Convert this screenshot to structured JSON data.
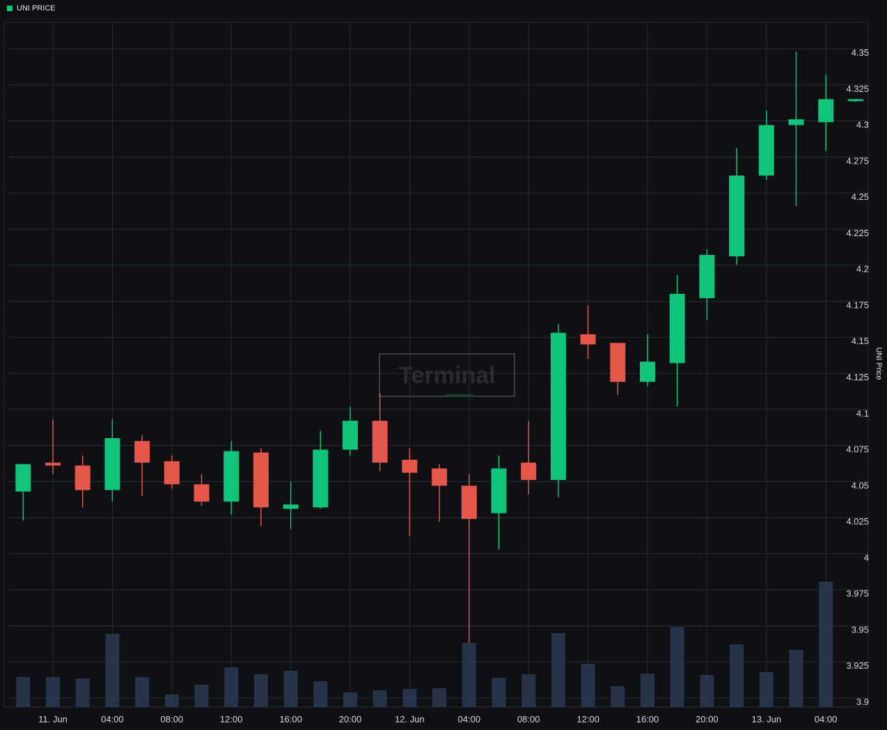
{
  "legend": {
    "label": "UNI PRICE",
    "color": "#10c47a"
  },
  "watermark": "Terminal",
  "colors": {
    "background": "#0e1014",
    "grid": "#2a2d33",
    "axis_text": "#d8d8d8",
    "up": "#10c47a",
    "down": "#e5574a",
    "volume": "#2a3a52"
  },
  "chart_data": {
    "type": "candlestick",
    "title": "",
    "ylabel": "UNI Price",
    "ylim": [
      3.9,
      4.37
    ],
    "y_ticks": [
      "4.35",
      "4.325",
      "4.3",
      "4.275",
      "4.25",
      "4.225",
      "4.2",
      "4.175",
      "4.15",
      "4.125",
      "4.1",
      "4.075",
      "4.05",
      "4.025",
      "4",
      "3.975",
      "3.95",
      "3.925",
      "3.9"
    ],
    "x_ticks": [
      "11. Jun",
      "04:00",
      "08:00",
      "12:00",
      "16:00",
      "20:00",
      "12. Jun",
      "04:00",
      "08:00",
      "12:00",
      "16:00",
      "20:00",
      "13. Jun",
      "04:00"
    ],
    "x_tick_hours": [
      0,
      4,
      8,
      12,
      16,
      20,
      24,
      28,
      32,
      36,
      40,
      44,
      48,
      52
    ],
    "candles": [
      {
        "hour": -2,
        "open": 4.046,
        "high": 4.065,
        "low": 4.026,
        "close": 4.065,
        "volume": 0.43
      },
      {
        "hour": 0,
        "open": 4.066,
        "high": 4.096,
        "low": 4.058,
        "close": 4.064,
        "volume": 0.43
      },
      {
        "hour": 2,
        "open": 4.064,
        "high": 4.071,
        "low": 4.035,
        "close": 4.047,
        "volume": 0.41
      },
      {
        "hour": 4,
        "open": 4.047,
        "high": 4.096,
        "low": 4.039,
        "close": 4.083,
        "volume": 1.05
      },
      {
        "hour": 6,
        "open": 4.081,
        "high": 4.085,
        "low": 4.043,
        "close": 4.066,
        "volume": 0.43
      },
      {
        "hour": 8,
        "open": 4.067,
        "high": 4.071,
        "low": 4.048,
        "close": 4.051,
        "volume": 0.18
      },
      {
        "hour": 10,
        "open": 4.051,
        "high": 4.058,
        "low": 4.036,
        "close": 4.039,
        "volume": 0.32
      },
      {
        "hour": 12,
        "open": 4.039,
        "high": 4.081,
        "low": 4.03,
        "close": 4.074,
        "volume": 0.57
      },
      {
        "hour": 14,
        "open": 4.073,
        "high": 4.076,
        "low": 4.022,
        "close": 4.035,
        "volume": 0.47
      },
      {
        "hour": 16,
        "open": 4.034,
        "high": 4.053,
        "low": 4.02,
        "close": 4.037,
        "volume": 0.52
      },
      {
        "hour": 18,
        "open": 4.035,
        "high": 4.088,
        "low": 4.034,
        "close": 4.075,
        "volume": 0.37
      },
      {
        "hour": 20,
        "open": 4.075,
        "high": 4.105,
        "low": 4.071,
        "close": 4.095,
        "volume": 0.21
      },
      {
        "hour": 22,
        "open": 4.095,
        "high": 4.114,
        "low": 4.06,
        "close": 4.066,
        "volume": 0.24
      },
      {
        "hour": 24,
        "open": 4.068,
        "high": 4.076,
        "low": 4.015,
        "close": 4.059,
        "volume": 0.26
      },
      {
        "hour": 26,
        "open": 4.062,
        "high": 4.065,
        "low": 4.025,
        "close": 4.05,
        "volume": 0.27
      },
      {
        "hour": 28,
        "open": 4.05,
        "high": 4.058,
        "low": 3.941,
        "close": 4.027,
        "volume": 0.92
      },
      {
        "hour": 30,
        "open": 4.031,
        "high": 4.071,
        "low": 4.006,
        "close": 4.062,
        "volume": 0.42
      },
      {
        "hour": 32,
        "open": 4.066,
        "high": 4.095,
        "low": 4.044,
        "close": 4.054,
        "volume": 0.47
      },
      {
        "hour": 34,
        "open": 4.054,
        "high": 4.162,
        "low": 4.042,
        "close": 4.156,
        "volume": 1.06
      },
      {
        "hour": 36,
        "open": 4.155,
        "high": 4.175,
        "low": 4.138,
        "close": 4.148,
        "volume": 0.62
      },
      {
        "hour": 38,
        "open": 4.149,
        "high": 4.149,
        "low": 4.113,
        "close": 4.122,
        "volume": 0.3
      },
      {
        "hour": 40,
        "open": 4.122,
        "high": 4.155,
        "low": 4.119,
        "close": 4.136,
        "volume": 0.48
      },
      {
        "hour": 42,
        "open": 4.135,
        "high": 4.196,
        "low": 4.105,
        "close": 4.183,
        "volume": 1.15
      },
      {
        "hour": 44,
        "open": 4.18,
        "high": 4.214,
        "low": 4.165,
        "close": 4.21,
        "volume": 0.46
      },
      {
        "hour": 46,
        "open": 4.209,
        "high": 4.284,
        "low": 4.203,
        "close": 4.265,
        "volume": 0.9
      },
      {
        "hour": 48,
        "open": 4.265,
        "high": 4.31,
        "low": 4.262,
        "close": 4.3,
        "volume": 0.5
      },
      {
        "hour": 50,
        "open": 4.3,
        "high": 4.351,
        "low": 4.244,
        "close": 4.304,
        "volume": 0.82
      },
      {
        "hour": 52,
        "open": 4.302,
        "high": 4.335,
        "low": 4.282,
        "close": 4.318,
        "volume": 1.8
      },
      {
        "hour": 54,
        "open": 4.317,
        "high": 4.318,
        "low": 4.316,
        "close": 4.318,
        "volume": 0
      }
    ]
  }
}
